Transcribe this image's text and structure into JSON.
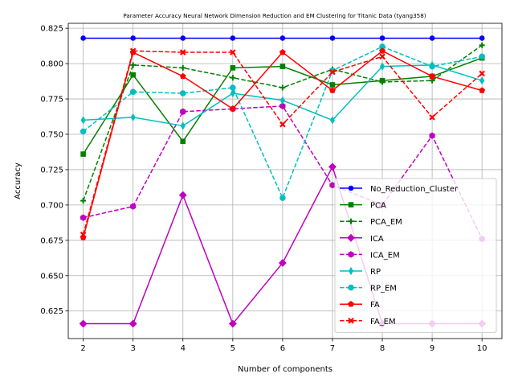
{
  "chart_data": {
    "type": "line",
    "title": "Parameter Accuracy Neural Network Dimension Reduction and EM Clustering for Titanic Data (tyang358)",
    "xlabel": "Number of components",
    "ylabel": "Accuracy",
    "x": [
      2,
      3,
      4,
      5,
      6,
      7,
      8,
      9,
      10
    ],
    "xlim": [
      1.7,
      10.4
    ],
    "ylim": [
      0.6055,
      0.8285
    ],
    "xticks": [
      2,
      3,
      4,
      5,
      6,
      7,
      8,
      9,
      10
    ],
    "yticks": [
      0.625,
      0.65,
      0.675,
      0.7,
      0.725,
      0.75,
      0.775,
      0.8,
      0.825
    ],
    "grid": true,
    "legend_position": "lower-right",
    "series": [
      {
        "name": "No_Reduction_Cluster",
        "color": "#0000ff",
        "dash": "solid",
        "marker": "circle",
        "values": [
          0.818,
          0.818,
          0.818,
          0.818,
          0.818,
          0.818,
          0.818,
          0.818,
          0.818
        ]
      },
      {
        "name": "PCA",
        "color": "#008000",
        "dash": "solid",
        "marker": "square",
        "values": [
          0.736,
          0.792,
          0.745,
          0.797,
          0.798,
          0.785,
          0.788,
          0.791,
          0.804
        ]
      },
      {
        "name": "PCA_EM",
        "color": "#008000",
        "dash": "dashed",
        "marker": "plus",
        "values": [
          0.703,
          0.799,
          0.797,
          0.79,
          0.783,
          0.796,
          0.787,
          0.788,
          0.813
        ]
      },
      {
        "name": "ICA",
        "color": "#bf00bf",
        "dash": "solid",
        "marker": "diamond",
        "values": [
          0.616,
          0.616,
          0.707,
          0.616,
          0.659,
          0.727,
          0.616,
          0.616,
          0.616
        ]
      },
      {
        "name": "ICA_EM",
        "color": "#bf00bf",
        "dash": "dashed",
        "marker": "hexagon",
        "values": [
          0.691,
          0.699,
          0.766,
          0.768,
          0.77,
          0.714,
          0.7,
          0.749,
          0.676
        ]
      },
      {
        "name": "RP",
        "color": "#00bfbf",
        "dash": "solid",
        "marker": "thin-diamond",
        "values": [
          0.76,
          0.762,
          0.756,
          0.779,
          0.774,
          0.76,
          0.798,
          0.799,
          0.788
        ]
      },
      {
        "name": "RP_EM",
        "color": "#00bfbf",
        "dash": "dashed",
        "marker": "octagon",
        "values": [
          0.752,
          0.78,
          0.779,
          0.783,
          0.705,
          0.795,
          0.812,
          0.798,
          0.805
        ]
      },
      {
        "name": "FA",
        "color": "#ff0000",
        "dash": "solid",
        "marker": "pentagon",
        "values": [
          0.677,
          0.808,
          0.791,
          0.768,
          0.808,
          0.781,
          0.809,
          0.791,
          0.781
        ]
      },
      {
        "name": "FA_EM",
        "color": "#ff0000",
        "dash": "dashed",
        "marker": "x",
        "values": [
          0.679,
          0.809,
          0.808,
          0.808,
          0.757,
          0.794,
          0.805,
          0.762,
          0.793
        ]
      }
    ]
  }
}
